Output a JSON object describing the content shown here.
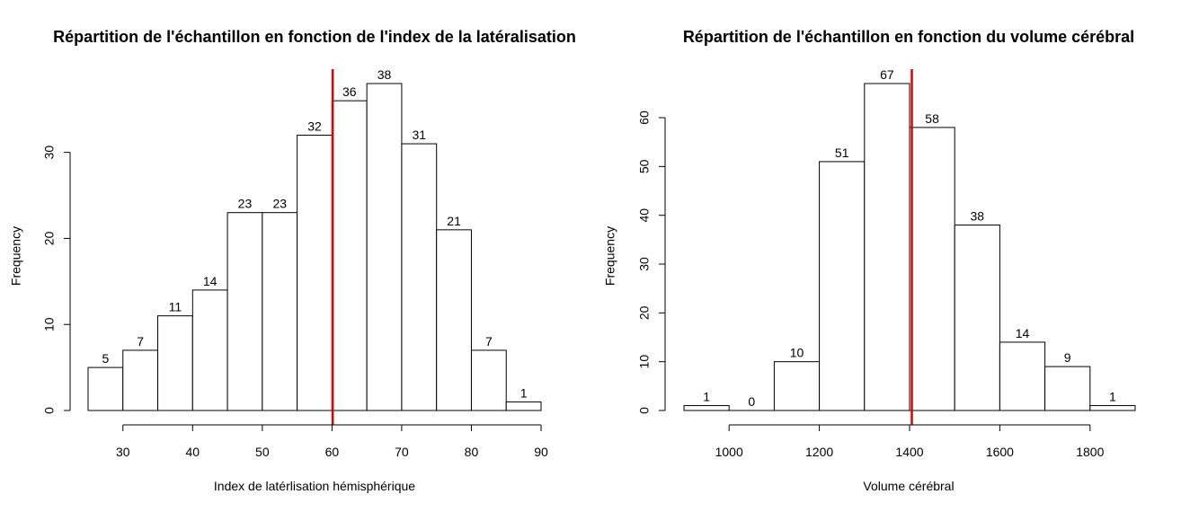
{
  "chart_data": [
    {
      "type": "bar",
      "title": "Répartition de l'échantillon en fonction de l'index de la latéralisation",
      "xlabel": "Index de latérlisation hémisphérique",
      "ylabel": "Frequency",
      "bin_edges": [
        25,
        30,
        35,
        40,
        45,
        50,
        55,
        60,
        65,
        70,
        75,
        80,
        85,
        90
      ],
      "values": [
        5,
        7,
        11,
        14,
        23,
        23,
        32,
        36,
        38,
        31,
        21,
        7,
        1
      ],
      "data_labels": [
        "5",
        "7",
        "11",
        "14",
        "23",
        "23",
        "32",
        "36",
        "38",
        "31",
        "21",
        "7",
        "1"
      ],
      "x_ticks": [
        30,
        40,
        50,
        60,
        70,
        80,
        90
      ],
      "x_tick_labels": [
        "30",
        "40",
        "50",
        "60",
        "70",
        "80",
        "90"
      ],
      "y_ticks": [
        0,
        10,
        20,
        30
      ],
      "y_tick_labels": [
        "0",
        "10",
        "20",
        "30"
      ],
      "xlim": [
        25,
        90
      ],
      "ylim": [
        0,
        38
      ],
      "vline": {
        "x": 60.1,
        "color": "#e00000"
      },
      "grid": false
    },
    {
      "type": "bar",
      "title": "Répartition de l'échantillon en fonction du volume cérébral",
      "xlabel": "Volume cérébral",
      "ylabel": "Frequency",
      "bin_edges": [
        900,
        1000,
        1100,
        1200,
        1300,
        1400,
        1500,
        1600,
        1700,
        1800,
        1900
      ],
      "values": [
        1,
        0,
        10,
        51,
        67,
        58,
        38,
        14,
        9,
        1
      ],
      "data_labels": [
        "1",
        "0",
        "10",
        "51",
        "67",
        "58",
        "38",
        "14",
        "9",
        "1"
      ],
      "x_ticks": [
        1000,
        1200,
        1400,
        1600,
        1800
      ],
      "x_tick_labels": [
        "1000",
        "1200",
        "1400",
        "1600",
        "1800"
      ],
      "y_ticks": [
        0,
        10,
        20,
        30,
        40,
        50,
        60
      ],
      "y_tick_labels": [
        "0",
        "10",
        "20",
        "30",
        "40",
        "50",
        "60"
      ],
      "xlim": [
        900,
        1900
      ],
      "ylim": [
        0,
        67
      ],
      "vline": {
        "x": 1405,
        "color": "#e00000"
      },
      "grid": false
    }
  ]
}
